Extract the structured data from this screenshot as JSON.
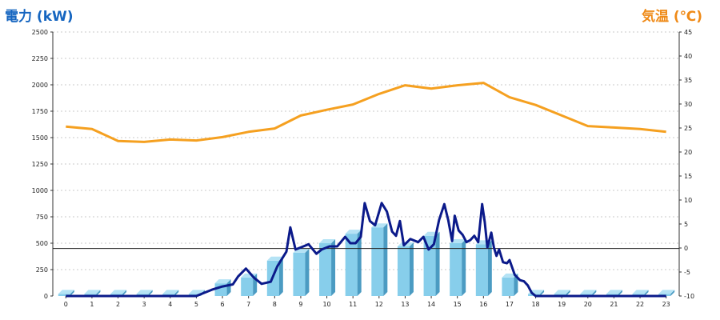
{
  "chart_data": {
    "type": "bar+line",
    "left_axis": {
      "label": "電力 (kW)",
      "ylim": [
        0,
        2500
      ],
      "ticks": [
        0,
        250,
        500,
        750,
        1000,
        1250,
        1500,
        1750,
        2000,
        2250,
        2500
      ]
    },
    "right_axis": {
      "label": "気温 (℃)",
      "ylim": [
        -10,
        45
      ],
      "ticks": [
        -10,
        -5,
        0,
        5,
        10,
        15,
        20,
        25,
        30,
        35,
        40,
        45
      ]
    },
    "x_ticks": [
      "0",
      "1",
      "2",
      "3",
      "4",
      "5",
      "6",
      "7",
      "8",
      "9",
      "10",
      "11",
      "12",
      "13",
      "14",
      "15",
      "16",
      "17",
      "18",
      "19",
      "20",
      "21",
      "22",
      "23"
    ],
    "grid": "horizontal-dashed",
    "bars": {
      "axis": "left",
      "values": [
        20,
        20,
        20,
        20,
        20,
        20,
        120,
        175,
        335,
        410,
        500,
        590,
        650,
        470,
        570,
        500,
        490,
        175,
        20,
        20,
        20,
        20,
        20,
        20
      ]
    },
    "power_line": {
      "axis": "left",
      "points": [
        [
          0,
          0
        ],
        [
          5,
          0
        ],
        [
          5.6,
          60
        ],
        [
          6,
          90
        ],
        [
          6.4,
          110
        ],
        [
          6.6,
          185
        ],
        [
          6.9,
          260
        ],
        [
          7.2,
          175
        ],
        [
          7.5,
          115
        ],
        [
          7.85,
          135
        ],
        [
          8.1,
          280
        ],
        [
          8.25,
          340
        ],
        [
          8.45,
          420
        ],
        [
          8.6,
          650
        ],
        [
          8.8,
          440
        ],
        [
          9.1,
          470
        ],
        [
          9.3,
          490
        ],
        [
          9.6,
          400
        ],
        [
          9.8,
          440
        ],
        [
          10.1,
          470
        ],
        [
          10.4,
          470
        ],
        [
          10.7,
          560
        ],
        [
          10.9,
          500
        ],
        [
          11.1,
          500
        ],
        [
          11.3,
          560
        ],
        [
          11.45,
          880
        ],
        [
          11.65,
          710
        ],
        [
          11.85,
          670
        ],
        [
          12.1,
          880
        ],
        [
          12.3,
          800
        ],
        [
          12.5,
          610
        ],
        [
          12.65,
          570
        ],
        [
          12.8,
          710
        ],
        [
          12.95,
          480
        ],
        [
          13.2,
          540
        ],
        [
          13.5,
          510
        ],
        [
          13.7,
          560
        ],
        [
          13.9,
          440
        ],
        [
          14.1,
          490
        ],
        [
          14.3,
          720
        ],
        [
          14.5,
          870
        ],
        [
          14.65,
          720
        ],
        [
          14.8,
          520
        ],
        [
          14.9,
          760
        ],
        [
          15.05,
          620
        ],
        [
          15.2,
          580
        ],
        [
          15.35,
          510
        ],
        [
          15.5,
          530
        ],
        [
          15.65,
          570
        ],
        [
          15.8,
          510
        ],
        [
          15.95,
          870
        ],
        [
          16.05,
          700
        ],
        [
          16.15,
          460
        ],
        [
          16.3,
          600
        ],
        [
          16.4,
          460
        ],
        [
          16.5,
          380
        ],
        [
          16.6,
          440
        ],
        [
          16.75,
          320
        ],
        [
          16.9,
          310
        ],
        [
          17.0,
          340
        ],
        [
          17.2,
          200
        ],
        [
          17.4,
          150
        ],
        [
          17.55,
          140
        ],
        [
          17.7,
          100
        ],
        [
          17.85,
          30
        ],
        [
          18,
          0
        ],
        [
          23,
          0
        ]
      ]
    },
    "temperature_line": {
      "axis": "right",
      "values": [
        25.3,
        24.8,
        22.3,
        22.1,
        22.6,
        22.4,
        23.1,
        24.2,
        24.9,
        27.6,
        28.8,
        29.9,
        32.1,
        33.9,
        33.2,
        33.9,
        34.4,
        31.4,
        29.8,
        27.6,
        25.4,
        25.1,
        24.8,
        24.2
      ]
    },
    "reference_line": {
      "axis": "left",
      "value": 450
    },
    "colors": {
      "bar_face": "#87ceeb",
      "bar_side": "#4b9bc2",
      "bar_top": "#b5e3f5",
      "power_line": "#0b1a8a",
      "temperature_line": "#f5a020",
      "left_title": "#1565c0",
      "right_title": "#ef8a17"
    }
  }
}
